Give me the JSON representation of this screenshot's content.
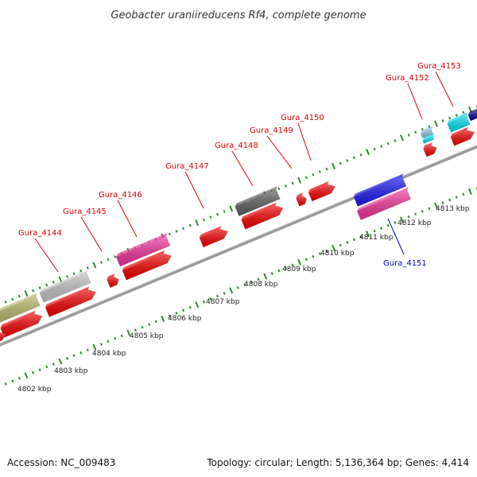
{
  "title": "Geobacter uraniireducens Rf4, complete genome",
  "footer": {
    "accession": "Accession: NC_009483",
    "topology": "Topology: circular; Length: 5,136,364 bp; Genes: 4,414"
  },
  "colors": {
    "backbone": "#9a9a9a",
    "tick": "#2e8b2e",
    "label_red": "#dd0000",
    "label_blue": "#0000cc"
  },
  "scale_labels": [
    "4802 kbp",
    "4803 kbp",
    "4804 kbp",
    "4805 kbp",
    "4806 kbp",
    "4807 kbp",
    "4808 kbp",
    "4809 kbp",
    "4810 kbp",
    "4811 kbp",
    "4812 kbp",
    "4813 kbp"
  ],
  "gene_labels": [
    {
      "name": "Gura_4144",
      "color": "#dd0000"
    },
    {
      "name": "Gura_4145",
      "color": "#dd0000"
    },
    {
      "name": "Gura_4146",
      "color": "#dd0000"
    },
    {
      "name": "Gura_4147",
      "color": "#dd0000"
    },
    {
      "name": "Gura_4148",
      "color": "#dd0000"
    },
    {
      "name": "Gura_4149",
      "color": "#dd0000"
    },
    {
      "name": "Gura_4150",
      "color": "#dd0000"
    },
    {
      "name": "Gura_4151",
      "color": "#0000cc"
    },
    {
      "name": "Gura_4152",
      "color": "#dd0000"
    },
    {
      "name": "Gura_4153",
      "color": "#dd0000"
    }
  ],
  "features": [
    {
      "name": "olive-block",
      "color": "#b5b56a"
    },
    {
      "name": "grey-block",
      "color": "#c0c0c0"
    },
    {
      "name": "pink-block",
      "color": "#ee3399"
    },
    {
      "name": "dark-grey-block",
      "color": "#606060"
    },
    {
      "name": "blue-block",
      "color": "#1a1aee"
    },
    {
      "name": "pink-block-lower",
      "color": "#ee3399"
    },
    {
      "name": "light-blue-block",
      "color": "#88bbdd"
    },
    {
      "name": "cyan-block",
      "color": "#00ddee"
    },
    {
      "name": "navy-block",
      "color": "#000088"
    },
    {
      "name": "red-arrow",
      "color": "#ee0000"
    }
  ]
}
